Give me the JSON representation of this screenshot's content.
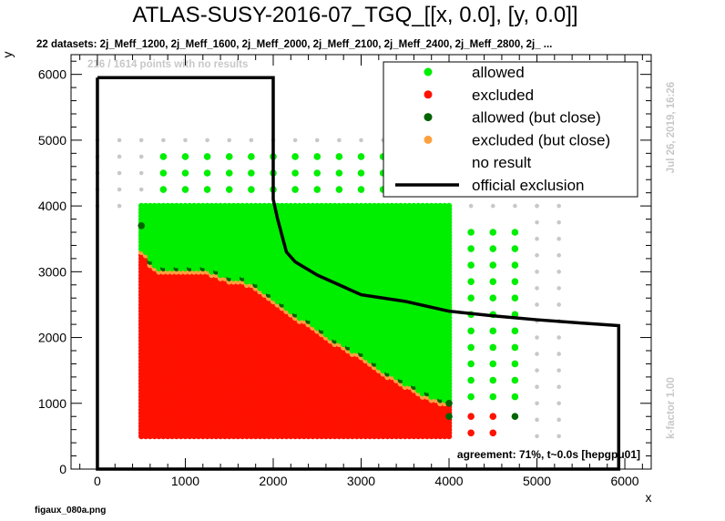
{
  "chart_data": {
    "type": "scatter",
    "title": "ATLAS-SUSY-2016-07_TGQ_[[x, 0.0], [y, 0.0]]",
    "subtitle": "22 datasets: 2j_Meff_1200, 2j_Meff_1600, 2j_Meff_2000, 2j_Meff_2100, 2j_Meff_2400, 2j_Meff_2800, 2j_ ...",
    "no_result_note": "216 / 1614 points with no results",
    "xlabel": "x",
    "ylabel": "y",
    "xlim": [
      -300,
      6300
    ],
    "ylim": [
      0,
      6300
    ],
    "x_ticks": [
      0,
      1000,
      2000,
      3000,
      4000,
      5000,
      6000
    ],
    "y_ticks": [
      0,
      1000,
      2000,
      3000,
      4000,
      5000,
      6000
    ],
    "legend_position": "top-right",
    "legend": [
      {
        "label": "allowed",
        "color": "#00ee00",
        "kind": "marker"
      },
      {
        "label": "excluded",
        "color": "#ff1100",
        "kind": "marker"
      },
      {
        "label": "allowed (but close)",
        "color": "#006400",
        "kind": "marker"
      },
      {
        "label": "excluded (but close)",
        "color": "#ffa040",
        "kind": "marker"
      },
      {
        "label": "no result",
        "color": "#ffffff",
        "kind": "none"
      },
      {
        "label": "official exclusion",
        "color": "#000000",
        "kind": "line"
      }
    ],
    "colors": {
      "allowed": "#00ee00",
      "excluded": "#ff1100",
      "allowed_close": "#006400",
      "excluded_close": "#ffa040",
      "no_result": "#c8c8c8"
    },
    "dense_grid": {
      "x_start": 500,
      "x_end": 4000,
      "x_step": 50,
      "y_start": 500,
      "y_end": 4000,
      "y_step": 50
    },
    "excluded_boundary": [
      [
        500,
        3350
      ],
      [
        550,
        3300
      ],
      [
        600,
        3150
      ],
      [
        700,
        3050
      ],
      [
        1100,
        3050
      ],
      [
        1300,
        3000
      ],
      [
        1500,
        2900
      ],
      [
        1700,
        2850
      ],
      [
        1900,
        2700
      ],
      [
        2100,
        2500
      ],
      [
        2300,
        2300
      ],
      [
        2500,
        2150
      ],
      [
        2700,
        1950
      ],
      [
        2900,
        1800
      ],
      [
        3100,
        1650
      ],
      [
        3300,
        1450
      ],
      [
        3500,
        1300
      ],
      [
        3700,
        1150
      ],
      [
        3900,
        1050
      ],
      [
        4000,
        1050
      ]
    ],
    "sparse_points": [
      {
        "x": 4250,
        "y": 3600,
        "status": "allowed"
      },
      {
        "x": 4500,
        "y": 3600,
        "status": "allowed"
      },
      {
        "x": 4750,
        "y": 3600,
        "status": "allowed"
      },
      {
        "x": 4250,
        "y": 3350,
        "status": "allowed"
      },
      {
        "x": 4500,
        "y": 3350,
        "status": "allowed"
      },
      {
        "x": 4750,
        "y": 3350,
        "status": "allowed"
      },
      {
        "x": 4250,
        "y": 3100,
        "status": "allowed"
      },
      {
        "x": 4500,
        "y": 3100,
        "status": "allowed"
      },
      {
        "x": 4750,
        "y": 3100,
        "status": "allowed"
      },
      {
        "x": 4250,
        "y": 2850,
        "status": "allowed"
      },
      {
        "x": 4500,
        "y": 2850,
        "status": "allowed"
      },
      {
        "x": 4750,
        "y": 2850,
        "status": "allowed"
      },
      {
        "x": 4250,
        "y": 2600,
        "status": "allowed"
      },
      {
        "x": 4500,
        "y": 2600,
        "status": "allowed"
      },
      {
        "x": 4750,
        "y": 2600,
        "status": "allowed"
      },
      {
        "x": 4250,
        "y": 2350,
        "status": "allowed"
      },
      {
        "x": 4500,
        "y": 2350,
        "status": "allowed"
      },
      {
        "x": 4750,
        "y": 2350,
        "status": "allowed"
      },
      {
        "x": 4250,
        "y": 2100,
        "status": "allowed"
      },
      {
        "x": 4500,
        "y": 2100,
        "status": "allowed"
      },
      {
        "x": 4750,
        "y": 2100,
        "status": "allowed"
      },
      {
        "x": 4250,
        "y": 1850,
        "status": "allowed"
      },
      {
        "x": 4500,
        "y": 1850,
        "status": "allowed"
      },
      {
        "x": 4750,
        "y": 1850,
        "status": "allowed"
      },
      {
        "x": 4250,
        "y": 1600,
        "status": "allowed"
      },
      {
        "x": 4500,
        "y": 1600,
        "status": "allowed"
      },
      {
        "x": 4750,
        "y": 1600,
        "status": "allowed"
      },
      {
        "x": 4250,
        "y": 1350,
        "status": "allowed"
      },
      {
        "x": 4500,
        "y": 1350,
        "status": "allowed"
      },
      {
        "x": 4750,
        "y": 1350,
        "status": "allowed"
      },
      {
        "x": 4250,
        "y": 1100,
        "status": "allowed"
      },
      {
        "x": 4500,
        "y": 1100,
        "status": "allowed"
      },
      {
        "x": 4750,
        "y": 1100,
        "status": "allowed"
      },
      {
        "x": 4250,
        "y": 800,
        "status": "excluded"
      },
      {
        "x": 4500,
        "y": 800,
        "status": "excluded"
      },
      {
        "x": 4750,
        "y": 800,
        "status": "allowed_close"
      },
      {
        "x": 4250,
        "y": 550,
        "status": "excluded"
      },
      {
        "x": 4500,
        "y": 550,
        "status": "excluded"
      },
      {
        "x": 4000,
        "y": 1000,
        "status": "allowed_close"
      },
      {
        "x": 4000,
        "y": 800,
        "status": "allowed_close"
      },
      {
        "x": 500,
        "y": 3700,
        "status": "allowed_close"
      },
      {
        "x": 750,
        "y": 4750,
        "status": "allowed"
      },
      {
        "x": 1000,
        "y": 4750,
        "status": "allowed"
      },
      {
        "x": 1250,
        "y": 4750,
        "status": "allowed"
      },
      {
        "x": 1500,
        "y": 4750,
        "status": "allowed"
      },
      {
        "x": 1750,
        "y": 4750,
        "status": "allowed"
      },
      {
        "x": 2000,
        "y": 4750,
        "status": "allowed"
      },
      {
        "x": 2250,
        "y": 4750,
        "status": "allowed"
      },
      {
        "x": 2500,
        "y": 4750,
        "status": "allowed"
      },
      {
        "x": 2750,
        "y": 4750,
        "status": "allowed"
      },
      {
        "x": 3000,
        "y": 4750,
        "status": "allowed"
      },
      {
        "x": 3250,
        "y": 4750,
        "status": "allowed"
      },
      {
        "x": 750,
        "y": 4500,
        "status": "allowed"
      },
      {
        "x": 1000,
        "y": 4500,
        "status": "allowed"
      },
      {
        "x": 1250,
        "y": 4500,
        "status": "allowed"
      },
      {
        "x": 1500,
        "y": 4500,
        "status": "allowed"
      },
      {
        "x": 1750,
        "y": 4500,
        "status": "allowed"
      },
      {
        "x": 2000,
        "y": 4500,
        "status": "allowed"
      },
      {
        "x": 2250,
        "y": 4500,
        "status": "allowed"
      },
      {
        "x": 2500,
        "y": 4500,
        "status": "allowed"
      },
      {
        "x": 2750,
        "y": 4500,
        "status": "allowed"
      },
      {
        "x": 3000,
        "y": 4500,
        "status": "allowed"
      },
      {
        "x": 3250,
        "y": 4500,
        "status": "allowed"
      },
      {
        "x": 750,
        "y": 4250,
        "status": "allowed"
      },
      {
        "x": 1000,
        "y": 4250,
        "status": "allowed"
      },
      {
        "x": 1250,
        "y": 4250,
        "status": "allowed"
      },
      {
        "x": 1500,
        "y": 4250,
        "status": "allowed"
      },
      {
        "x": 1750,
        "y": 4250,
        "status": "allowed"
      },
      {
        "x": 2000,
        "y": 4250,
        "status": "allowed"
      },
      {
        "x": 2250,
        "y": 4250,
        "status": "allowed"
      },
      {
        "x": 2500,
        "y": 4250,
        "status": "allowed"
      },
      {
        "x": 2750,
        "y": 4250,
        "status": "allowed"
      },
      {
        "x": 3000,
        "y": 4250,
        "status": "allowed"
      },
      {
        "x": 3250,
        "y": 4250,
        "status": "allowed"
      },
      {
        "x": 3750,
        "y": 4500,
        "status": "allowed"
      },
      {
        "x": 3750,
        "y": 4250,
        "status": "allowed"
      }
    ],
    "no_result_grid": {
      "x_start": 0,
      "x_end": 5000,
      "x_step": 250,
      "y_start": 4000,
      "y_end": 5000,
      "y_step": 250
    },
    "no_result_right": {
      "x": [
        5000,
        5250
      ],
      "y_start": 500,
      "y_end": 4000,
      "y_step": 250
    },
    "official_exclusion": [
      [
        0,
        5950
      ],
      [
        2000,
        5950
      ],
      [
        2000,
        4100
      ],
      [
        2050,
        3800
      ],
      [
        2100,
        3550
      ],
      [
        2150,
        3300
      ],
      [
        2250,
        3150
      ],
      [
        2500,
        2950
      ],
      [
        2750,
        2800
      ],
      [
        3000,
        2650
      ],
      [
        3500,
        2550
      ],
      [
        4000,
        2400
      ],
      [
        4500,
        2330
      ],
      [
        5000,
        2270
      ],
      [
        5500,
        2220
      ],
      [
        5930,
        2180
      ],
      [
        5930,
        0
      ],
      [
        0,
        0
      ],
      [
        0,
        5950
      ]
    ],
    "agreement_text": "agreement: 71%, t~0.0s [hepgpu01]",
    "timestamp": "Jul 26, 2019, 16:26",
    "k_factor": "k-factor 1.00",
    "filename": "figaux_080a.png"
  }
}
